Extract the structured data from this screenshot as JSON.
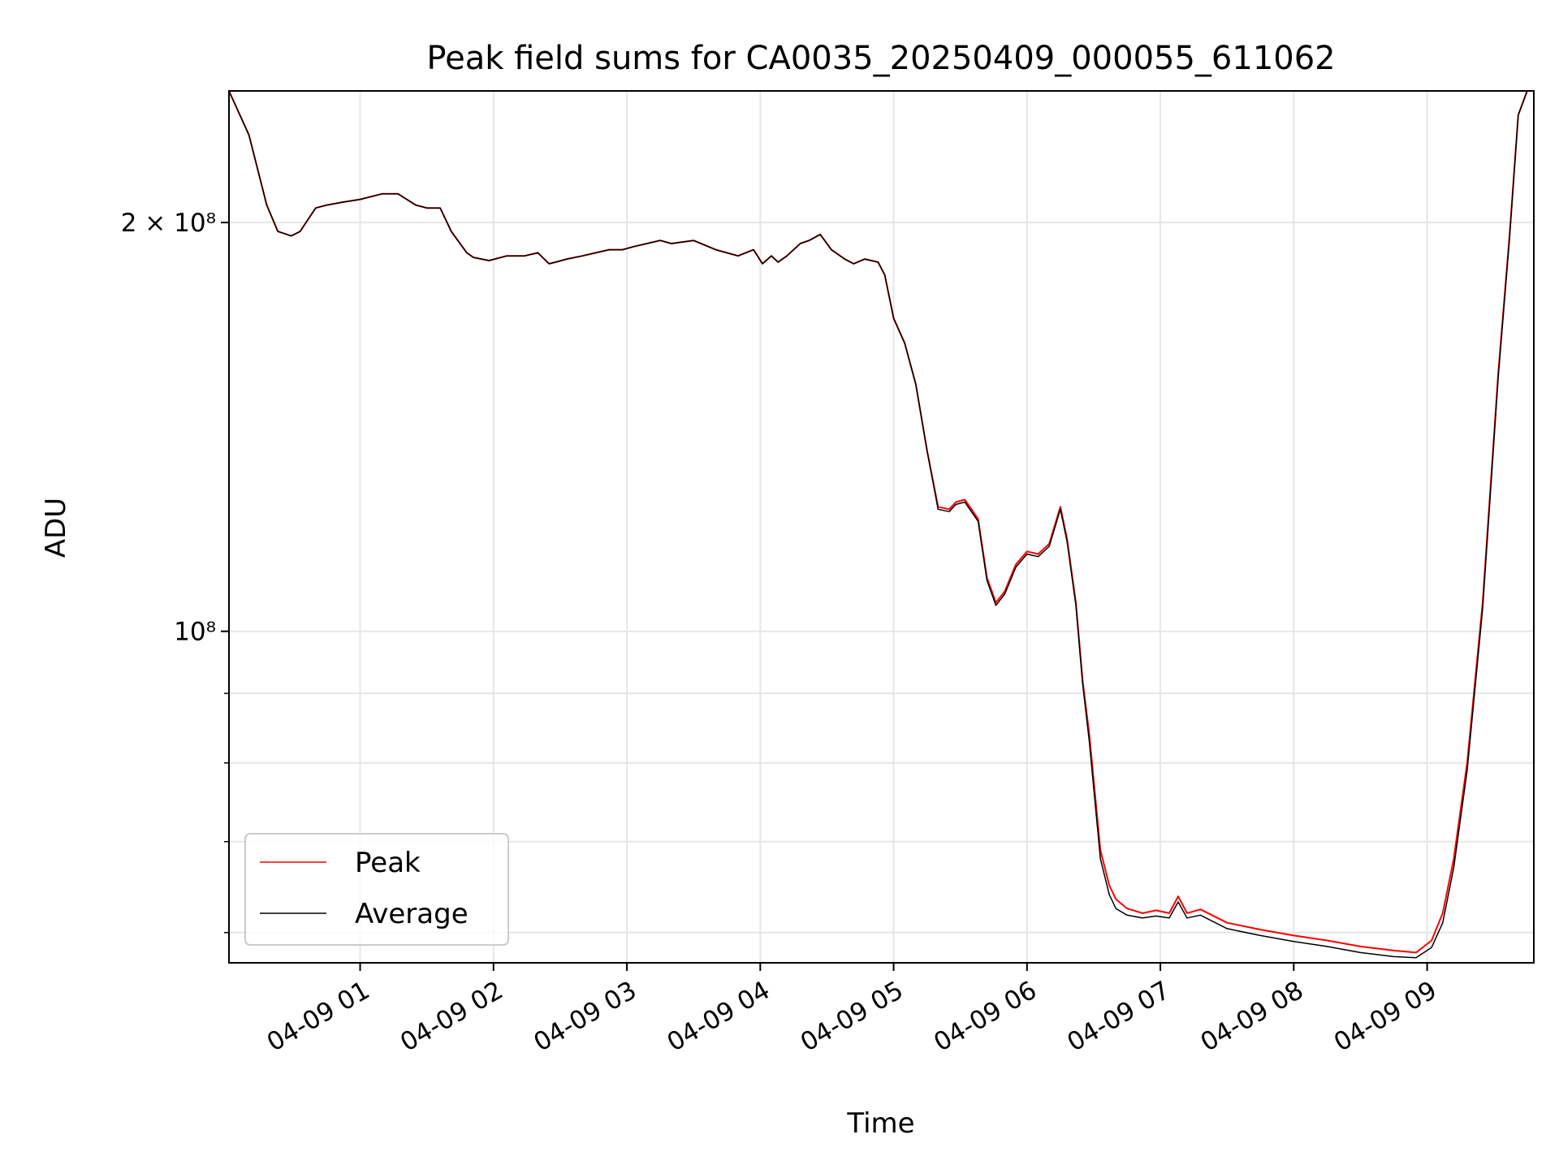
{
  "chart_data": {
    "type": "line",
    "title": "Peak field sums for CA0035_20250409_000055_611062",
    "xlabel": "Time",
    "ylabel": "ADU",
    "yscale": "log",
    "grid": true,
    "legend_position": "lower-left",
    "x_range": [
      "2025-04-09 00:01",
      "2025-04-09 09:48"
    ],
    "ylim": [
      57000000,
      250000000
    ],
    "x_ticks": [
      "04-09 01",
      "04-09 02",
      "04-09 03",
      "04-09 04",
      "04-09 05",
      "04-09 06",
      "04-09 07",
      "04-09 08",
      "04-09 09"
    ],
    "y_ticks": [
      {
        "value": 200000000,
        "label": "2 × 10⁸"
      },
      {
        "value": 100000000,
        "label": "10⁸"
      }
    ],
    "y_minor_ticks": [
      60000000,
      70000000,
      80000000,
      90000000
    ],
    "x_unit_note": "x values are timestamps (2025-04-09, HH:MM)",
    "x": [
      "00:01",
      "00:10",
      "00:18",
      "00:23",
      "00:29",
      "00:33",
      "00:40",
      "00:45",
      "00:52",
      "01:00",
      "01:10",
      "01:17",
      "01:25",
      "01:30",
      "01:36",
      "01:41",
      "01:48",
      "01:51",
      "01:58",
      "02:06",
      "02:14",
      "02:20",
      "02:25",
      "02:28",
      "02:33",
      "02:40",
      "02:46",
      "02:52",
      "02:58",
      "03:03",
      "03:09",
      "03:15",
      "03:20",
      "03:30",
      "03:40",
      "03:45",
      "03:50",
      "03:57",
      "04:01",
      "04:05",
      "04:08",
      "04:12",
      "04:18",
      "04:22",
      "04:27",
      "04:32",
      "04:38",
      "04:42",
      "04:47",
      "04:53",
      "04:56",
      "05:00",
      "05:05",
      "05:10",
      "05:15",
      "05:20",
      "05:25",
      "05:28",
      "05:32",
      "05:38",
      "05:42",
      "05:46",
      "05:50",
      "05:55",
      "06:00",
      "06:05",
      "06:10",
      "06:15",
      "06:18",
      "06:22",
      "06:25",
      "06:28",
      "06:33",
      "06:37",
      "06:40",
      "06:45",
      "06:52",
      "06:58",
      "07:04",
      "07:08",
      "07:12",
      "07:18",
      "07:30",
      "07:45",
      "08:00",
      "08:15",
      "08:30",
      "08:45",
      "08:55",
      "09:02",
      "09:07",
      "09:12",
      "09:18",
      "09:25",
      "09:32",
      "09:37",
      "09:41",
      "09:45"
    ],
    "series": [
      {
        "name": "Peak",
        "color": "#ff0000",
        "values": [
          250000000,
          232000000,
          206000000,
          197000000,
          195500000,
          197000000,
          205000000,
          206000000,
          207000000,
          208000000,
          210000000,
          210000000,
          206000000,
          205000000,
          205000000,
          197000000,
          190000000,
          188500000,
          187500000,
          189000000,
          189000000,
          190000000,
          186500000,
          187000000,
          188000000,
          189000000,
          190000000,
          191000000,
          191000000,
          192000000,
          193000000,
          194000000,
          193000000,
          194000000,
          191000000,
          190000000,
          189000000,
          191000000,
          186500000,
          189000000,
          187000000,
          189000000,
          193000000,
          194000000,
          196000000,
          191000000,
          188000000,
          186500000,
          188000000,
          187000000,
          183000000,
          170000000,
          163000000,
          152000000,
          136000000,
          123500000,
          123000000,
          124500000,
          125000000,
          121000000,
          109500000,
          105000000,
          107000000,
          112000000,
          114500000,
          114000000,
          116000000,
          123500000,
          117000000,
          105000000,
          92000000,
          84000000,
          69000000,
          65000000,
          63500000,
          62500000,
          62000000,
          62300000,
          62000000,
          63800000,
          62000000,
          62400000,
          61000000,
          60300000,
          59700000,
          59200000,
          58600000,
          58200000,
          58000000,
          59200000,
          62000000,
          68000000,
          80000000,
          105000000,
          155000000,
          195000000,
          240000000,
          250000000
        ]
      },
      {
        "name": "Average",
        "color": "#000000",
        "values": [
          250000000,
          232000000,
          206000000,
          197000000,
          195500000,
          197000000,
          205000000,
          206000000,
          207000000,
          208000000,
          210000000,
          210000000,
          206000000,
          205000000,
          205000000,
          197000000,
          190000000,
          188500000,
          187500000,
          189000000,
          189000000,
          190000000,
          186500000,
          187000000,
          188000000,
          189000000,
          190000000,
          191000000,
          191000000,
          192000000,
          193000000,
          194000000,
          193000000,
          194000000,
          191000000,
          190000000,
          189000000,
          191000000,
          186500000,
          189000000,
          187000000,
          189000000,
          193000000,
          194000000,
          196000000,
          191000000,
          188000000,
          186500000,
          188000000,
          187000000,
          183000000,
          170000000,
          163000000,
          152000000,
          136000000,
          123000000,
          122500000,
          124000000,
          124500000,
          120500000,
          109000000,
          104500000,
          106500000,
          111500000,
          114000000,
          113500000,
          115500000,
          123000000,
          116500000,
          104500000,
          91500000,
          83000000,
          68000000,
          64000000,
          62500000,
          61800000,
          61500000,
          61700000,
          61500000,
          63200000,
          61500000,
          61800000,
          60400000,
          59700000,
          59100000,
          58600000,
          58000000,
          57600000,
          57500000,
          58500000,
          61000000,
          67000000,
          79000000,
          104000000,
          154000000,
          194000000,
          240000000,
          250000000
        ]
      }
    ]
  }
}
